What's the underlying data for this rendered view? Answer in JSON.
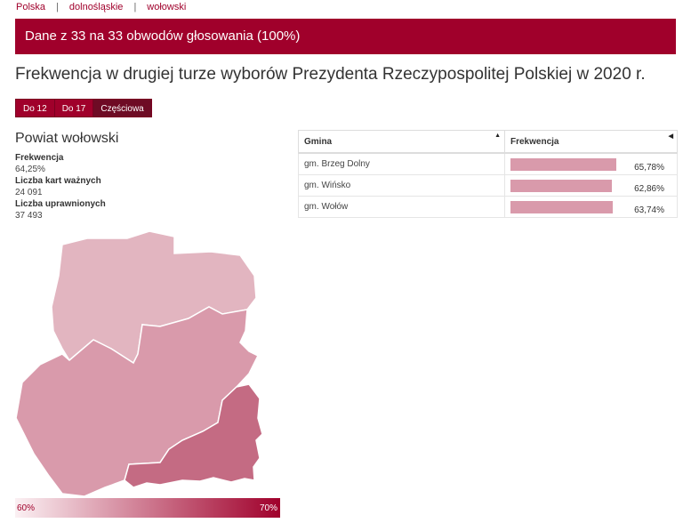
{
  "breadcrumb": [
    "Polska",
    "dolnośląskie",
    "wołowski"
  ],
  "banner": "Dane z 33 na 33 obwodów głosowania (100%)",
  "title": "Frekwencja w drugiej turze wyborów Prezydenta Rzeczypospolitej Polskiej w 2020 r.",
  "tabs": [
    {
      "label": "Do 12",
      "active": false
    },
    {
      "label": "Do 17",
      "active": false
    },
    {
      "label": "Częściowa",
      "active": true
    }
  ],
  "area": {
    "name": "Powiat wołowski",
    "stats": [
      {
        "label": "Frekwencja",
        "value": "64,25%"
      },
      {
        "label": "Liczba kart ważnych",
        "value": "24 091"
      },
      {
        "label": "Liczba uprawnionych",
        "value": "37 493"
      }
    ]
  },
  "table": {
    "columns": [
      "Gmina",
      "Frekwencja"
    ],
    "rows": [
      {
        "name": "gm. Brzeg Dolny",
        "turnout_label": "65,78%",
        "turnout": 65.78
      },
      {
        "name": "gm. Wińsko",
        "turnout_label": "62,86%",
        "turnout": 62.86
      },
      {
        "name": "gm. Wołów",
        "turnout_label": "63,74%",
        "turnout": 63.74
      }
    ]
  },
  "legend": {
    "min_label": "60%",
    "max_label": "70%",
    "min": 60,
    "max": 70
  },
  "colors": {
    "accent": "#a0002b",
    "tab_active": "#6e0b25",
    "bar": "#d99aab",
    "region_north": "#e2b5c0",
    "region_middle": "#d99aab",
    "region_south": "#c46b83"
  },
  "icons": {
    "sort_asc": "▲",
    "sort_left": "◀"
  }
}
